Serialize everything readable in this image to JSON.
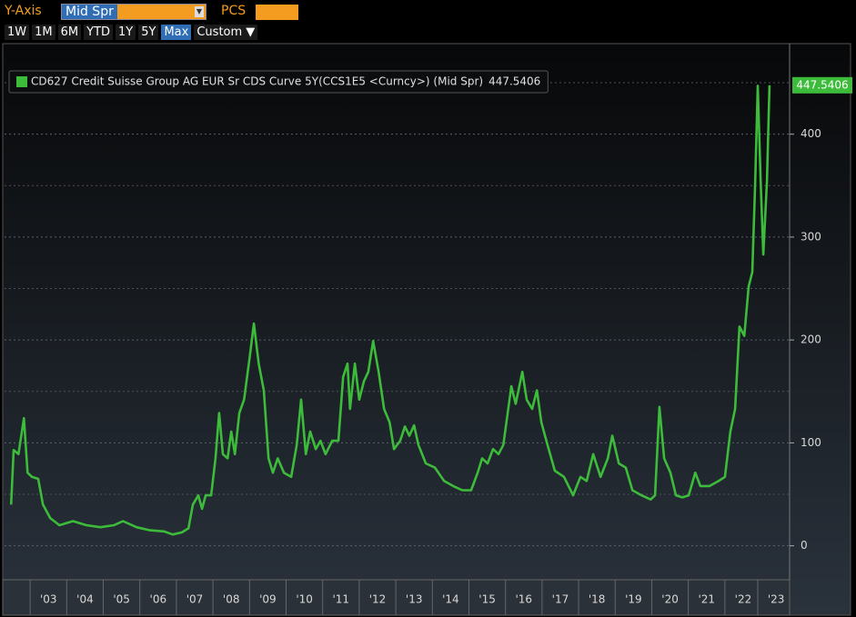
{
  "toolbar": {
    "y_axis_label": "Y-Axis",
    "field": "Mid Spr",
    "pcs_label": "PCS",
    "ranges": [
      "1W",
      "1M",
      "6M",
      "YTD",
      "1Y",
      "5Y",
      "Max",
      "Custom ▼"
    ],
    "selected_range": 6
  },
  "chart_data": {
    "type": "line",
    "series": [
      {
        "name": "CD627 Credit Suisse Group AG EUR Sr CDS Curve 5Y(CCS1E5 <Curncy>) (Mid Spr)",
        "color": "#3dbb3a",
        "x": [
          2002.48,
          2002.55,
          2002.68,
          2002.83,
          2002.93,
          2003.05,
          2003.22,
          2003.35,
          2003.55,
          2003.8,
          2004.17,
          2004.54,
          2004.92,
          2005.29,
          2005.54,
          2005.91,
          2006.28,
          2006.66,
          2006.9,
          2007.15,
          2007.33,
          2007.45,
          2007.6,
          2007.7,
          2007.8,
          2007.95,
          2008.07,
          2008.17,
          2008.27,
          2008.4,
          2008.5,
          2008.6,
          2008.72,
          2008.85,
          2009.0,
          2009.12,
          2009.25,
          2009.39,
          2009.52,
          2009.64,
          2009.77,
          2009.94,
          2010.14,
          2010.29,
          2010.41,
          2010.54,
          2010.66,
          2010.81,
          2010.94,
          2011.08,
          2011.26,
          2011.43,
          2011.56,
          2011.68,
          2011.75,
          2011.88,
          2012.0,
          2012.13,
          2012.25,
          2012.38,
          2012.53,
          2012.68,
          2012.83,
          2012.95,
          2013.12,
          2013.25,
          2013.37,
          2013.5,
          2013.62,
          2013.82,
          2014.07,
          2014.32,
          2014.57,
          2014.82,
          2015.06,
          2015.24,
          2015.36,
          2015.51,
          2015.66,
          2015.81,
          2015.94,
          2016.06,
          2016.16,
          2016.28,
          2016.46,
          2016.58,
          2016.73,
          2016.86,
          2016.98,
          2017.15,
          2017.35,
          2017.6,
          2017.85,
          2018.05,
          2018.22,
          2018.4,
          2018.6,
          2018.8,
          2018.92,
          2019.1,
          2019.29,
          2019.47,
          2019.72,
          2019.97,
          2020.09,
          2020.21,
          2020.34,
          2020.51,
          2020.66,
          2020.84,
          2021.01,
          2021.19,
          2021.33,
          2021.58,
          2021.83,
          2022.0,
          2022.15,
          2022.28,
          2022.4,
          2022.53,
          2022.65,
          2022.75,
          2022.83,
          2022.9,
          2022.98,
          2023.05,
          2023.15,
          2023.22
        ],
        "values": [
          40,
          93,
          89,
          124,
          71,
          67,
          65,
          40,
          27,
          20,
          24,
          20,
          18,
          20,
          24,
          18,
          15,
          14,
          11,
          13,
          17,
          40,
          49,
          36,
          49,
          49,
          85,
          129,
          89,
          85,
          111,
          89,
          129,
          142,
          182,
          216,
          177,
          151,
          85,
          71,
          85,
          71,
          67,
          98,
          142,
          89,
          111,
          94,
          102,
          89,
          102,
          102,
          164,
          177,
          133,
          177,
          142,
          160,
          169,
          199,
          169,
          133,
          120,
          94,
          102,
          116,
          107,
          117,
          98,
          80,
          76,
          63,
          58,
          54,
          54,
          71,
          85,
          80,
          94,
          89,
          98,
          129,
          155,
          138,
          169,
          142,
          133,
          151,
          120,
          98,
          73,
          67,
          49,
          67,
          63,
          89,
          67,
          85,
          107,
          80,
          76,
          54,
          49,
          45,
          49,
          135,
          85,
          71,
          49,
          47,
          49,
          71,
          58,
          58,
          63,
          67,
          111,
          133,
          213,
          204,
          252,
          266,
          354,
          447,
          354,
          283,
          354,
          447.5406
        ]
      }
    ],
    "xlim": [
      2002.3,
      2023.77
    ],
    "xticks": [
      {
        "value": 2003.5,
        "label": "'03"
      },
      {
        "value": 2004.5,
        "label": "'04"
      },
      {
        "value": 2005.5,
        "label": "'05"
      },
      {
        "value": 2006.5,
        "label": "'06"
      },
      {
        "value": 2007.5,
        "label": "'07"
      },
      {
        "value": 2008.5,
        "label": "'08"
      },
      {
        "value": 2009.5,
        "label": "'09"
      },
      {
        "value": 2010.5,
        "label": "'10"
      },
      {
        "value": 2011.5,
        "label": "'11"
      },
      {
        "value": 2012.5,
        "label": "'12"
      },
      {
        "value": 2013.5,
        "label": "'13"
      },
      {
        "value": 2014.5,
        "label": "'14"
      },
      {
        "value": 2015.5,
        "label": "'15"
      },
      {
        "value": 2016.5,
        "label": "'16"
      },
      {
        "value": 2017.5,
        "label": "'17"
      },
      {
        "value": 2018.5,
        "label": "'18"
      },
      {
        "value": 2019.5,
        "label": "'19"
      },
      {
        "value": 2020.5,
        "label": "'20"
      },
      {
        "value": 2021.5,
        "label": "'21"
      },
      {
        "value": 2022.5,
        "label": "'22"
      },
      {
        "value": 2023.4,
        "label": "'23"
      }
    ],
    "ylim": [
      -33,
      488
    ],
    "yticks": [
      0,
      100,
      200,
      300,
      400
    ],
    "minor_yticks": [
      50,
      150,
      250,
      350,
      450
    ],
    "grid": true
  }
}
